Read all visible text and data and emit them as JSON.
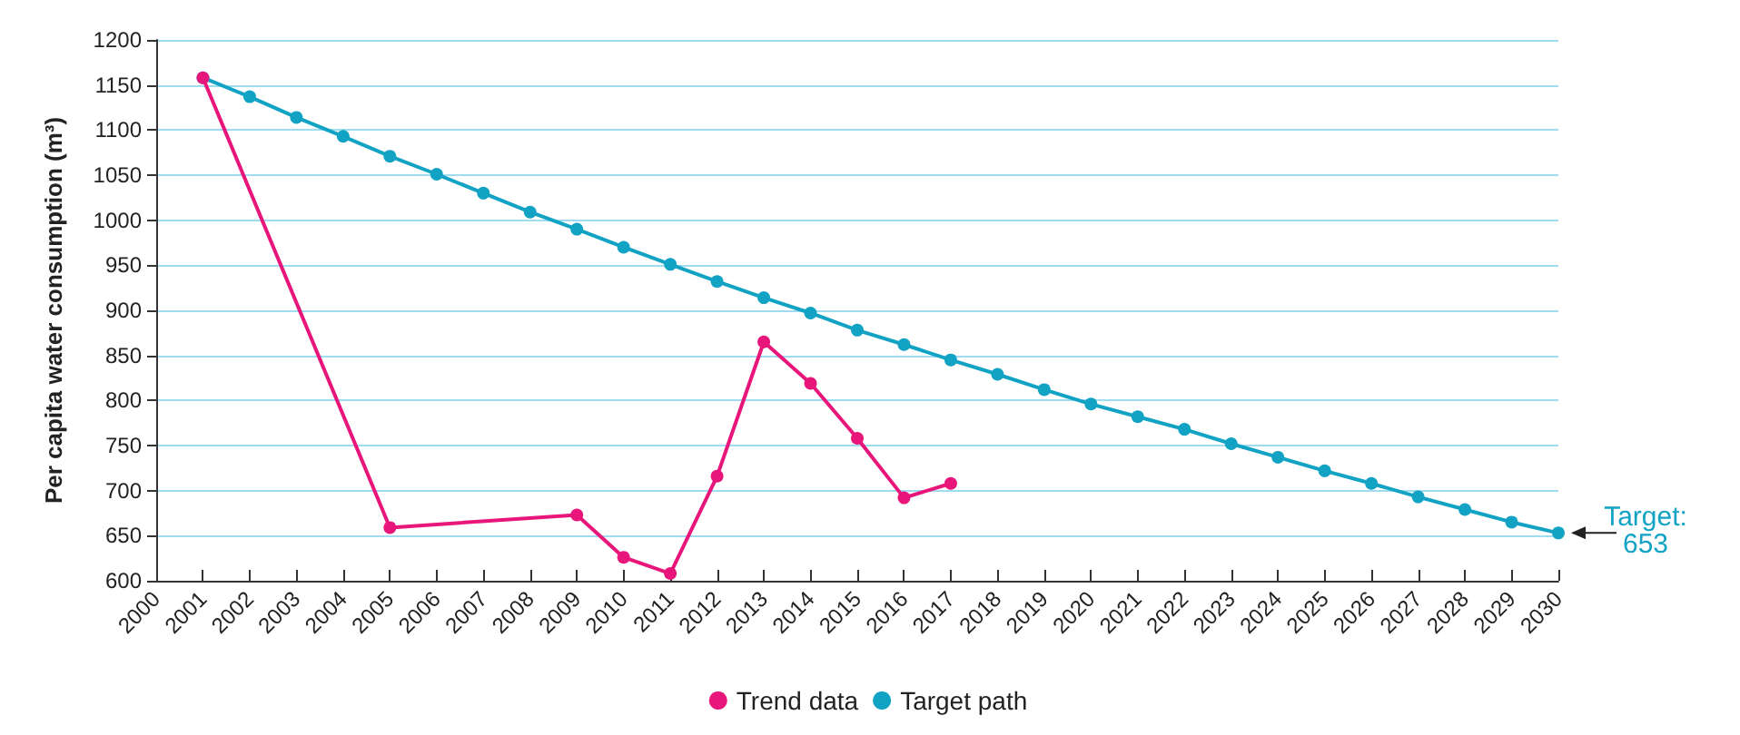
{
  "chart_data": {
    "type": "line",
    "ylabel": "Per capita water consumption (m³)",
    "xlim": [
      2000,
      2030
    ],
    "xticks": [
      2000,
      2001,
      2002,
      2003,
      2004,
      2005,
      2006,
      2007,
      2008,
      2009,
      2010,
      2011,
      2012,
      2013,
      2014,
      2015,
      2016,
      2017,
      2018,
      2019,
      2020,
      2021,
      2022,
      2023,
      2024,
      2025,
      2026,
      2027,
      2028,
      2029,
      2030
    ],
    "ylim": [
      600,
      1200
    ],
    "yticks": [
      600,
      650,
      700,
      750,
      800,
      850,
      900,
      950,
      1000,
      1050,
      1100,
      1150,
      1200
    ],
    "series": [
      {
        "name": "Trend data",
        "color": "#e8157a",
        "x": [
          2001,
          2005,
          2009,
          2010,
          2011,
          2012,
          2013,
          2014,
          2015,
          2016,
          2017
        ],
        "values": [
          1158,
          659,
          673,
          626,
          608,
          716,
          865,
          819,
          758,
          692,
          708
        ]
      },
      {
        "name": "Target path",
        "color": "#12a3c4",
        "x": [
          2001,
          2002,
          2003,
          2004,
          2005,
          2006,
          2007,
          2008,
          2009,
          2010,
          2011,
          2012,
          2013,
          2014,
          2015,
          2016,
          2017,
          2018,
          2019,
          2020,
          2021,
          2022,
          2023,
          2024,
          2025,
          2026,
          2027,
          2028,
          2029,
          2030
        ],
        "values": [
          1158,
          1137,
          1114,
          1093,
          1071,
          1051,
          1030,
          1009,
          990,
          970,
          951,
          932,
          914,
          897,
          878,
          862,
          845,
          829,
          812,
          796,
          782,
          768,
          752,
          737,
          722,
          708,
          693,
          679,
          665,
          653
        ]
      }
    ],
    "annotations": [
      {
        "text": "Target:\n653",
        "x": 2030,
        "y": 653
      }
    ],
    "grid": "y",
    "legend": "bottom",
    "marker": "circle",
    "line_style": "solid"
  }
}
